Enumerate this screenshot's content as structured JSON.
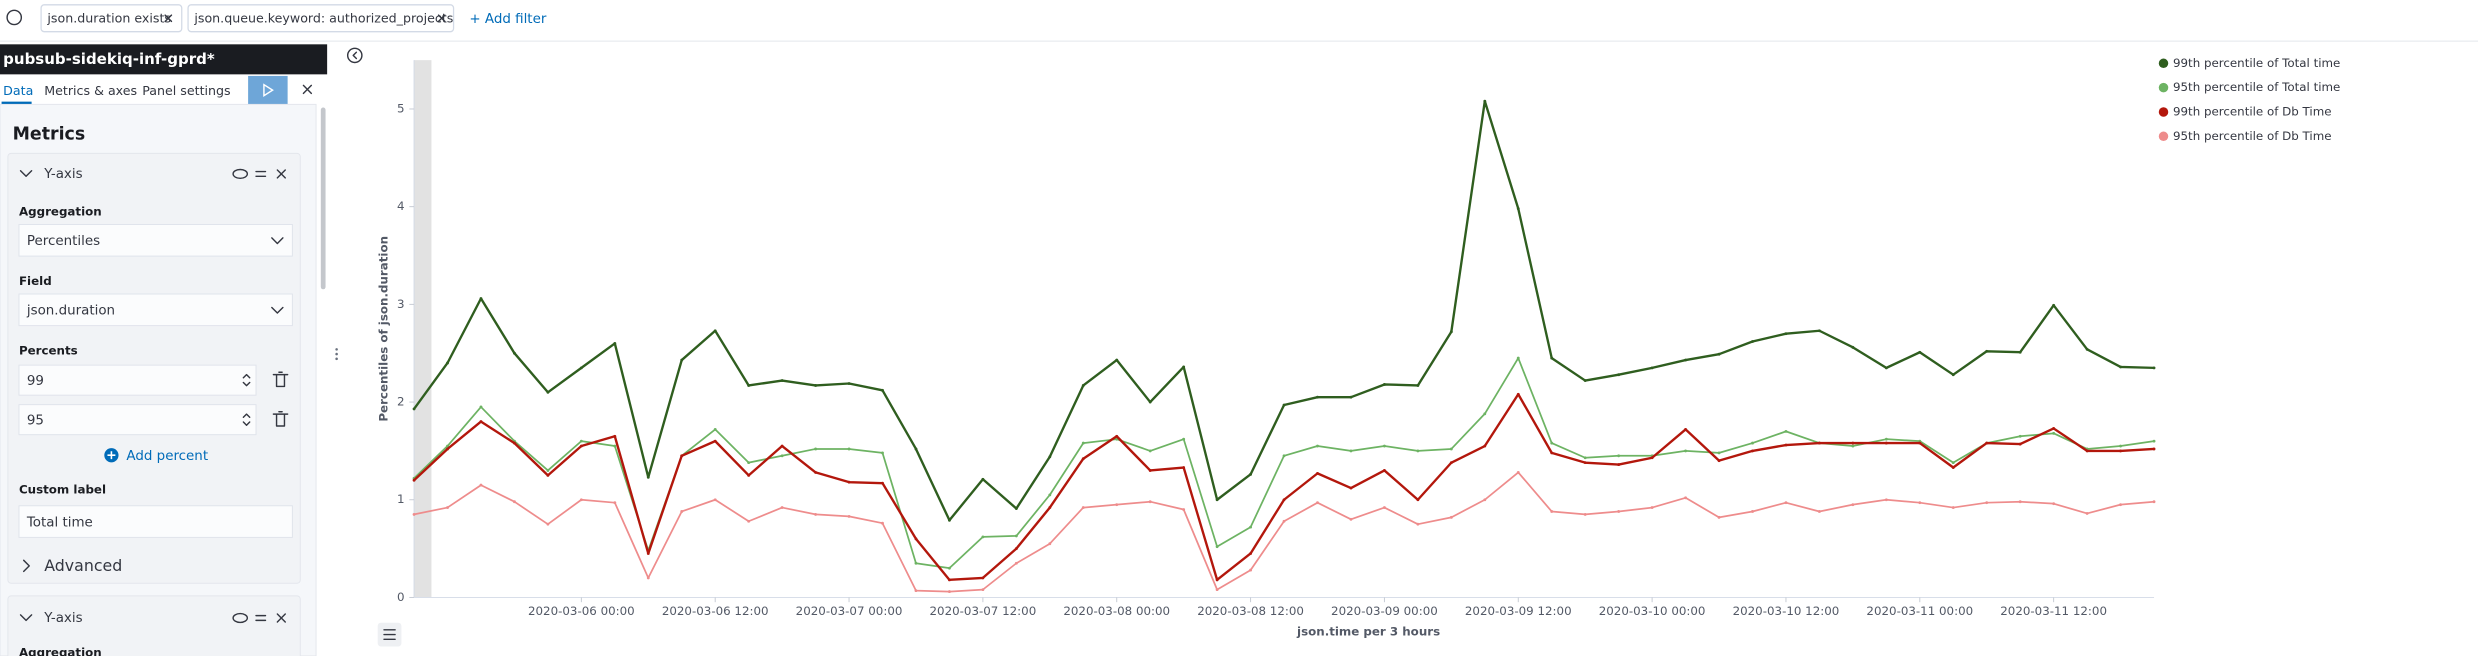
{
  "filter_bar": {
    "filters": [
      "json.duration exists",
      "json.queue.keyword: authorized_projects"
    ],
    "add_filter": "+ Add filter"
  },
  "sidebar": {
    "index_pattern": "pubsub-sidekiq-inf-gprd*",
    "tabs": [
      "Data",
      "Metrics & axes",
      "Panel settings"
    ],
    "section_title": "Metrics",
    "metrics": [
      {
        "title": "Y-axis",
        "aggregation_label": "Aggregation",
        "aggregation": "Percentiles",
        "field_label": "Field",
        "field": "json.duration",
        "percents_label": "Percents",
        "percents": [
          99,
          95
        ],
        "add_percent": "Add percent",
        "custom_label_label": "Custom label",
        "custom_label": "Total time",
        "advanced": "Advanced"
      },
      {
        "title": "Y-axis",
        "aggregation_label": "Aggregation"
      }
    ]
  },
  "chart_data": {
    "type": "line",
    "ylabel": "Percentiles of json.duration",
    "xlabel": "json.time per 3 hours",
    "legend": "top-right",
    "x": [
      "2020-03-05 09:00",
      "2020-03-05 12:00",
      "2020-03-05 15:00",
      "2020-03-05 18:00",
      "2020-03-05 21:00",
      "2020-03-06 00:00",
      "2020-03-06 03:00",
      "2020-03-06 06:00",
      "2020-03-06 09:00",
      "2020-03-06 12:00",
      "2020-03-06 15:00",
      "2020-03-06 18:00",
      "2020-03-06 21:00",
      "2020-03-07 00:00",
      "2020-03-07 03:00",
      "2020-03-07 06:00",
      "2020-03-07 09:00",
      "2020-03-07 12:00",
      "2020-03-07 15:00",
      "2020-03-07 18:00",
      "2020-03-07 21:00",
      "2020-03-08 00:00",
      "2020-03-08 03:00",
      "2020-03-08 06:00",
      "2020-03-08 09:00",
      "2020-03-08 12:00",
      "2020-03-08 15:00",
      "2020-03-08 18:00",
      "2020-03-08 21:00",
      "2020-03-09 00:00",
      "2020-03-09 03:00",
      "2020-03-09 06:00",
      "2020-03-09 09:00",
      "2020-03-09 12:00",
      "2020-03-09 15:00",
      "2020-03-09 18:00",
      "2020-03-09 21:00",
      "2020-03-10 00:00",
      "2020-03-10 03:00",
      "2020-03-10 06:00",
      "2020-03-10 09:00",
      "2020-03-10 12:00",
      "2020-03-10 15:00",
      "2020-03-10 18:00",
      "2020-03-10 21:00",
      "2020-03-11 00:00",
      "2020-03-11 03:00",
      "2020-03-11 06:00",
      "2020-03-11 09:00",
      "2020-03-11 12:00",
      "2020-03-11 15:00",
      "2020-03-11 18:00",
      "2020-03-11 21:00"
    ],
    "xticks": [
      "2020-03-06 00:00",
      "2020-03-06 12:00",
      "2020-03-07 00:00",
      "2020-03-07 12:00",
      "2020-03-08 00:00",
      "2020-03-08 12:00",
      "2020-03-09 00:00",
      "2020-03-09 12:00",
      "2020-03-10 00:00",
      "2020-03-10 12:00",
      "2020-03-11 00:00",
      "2020-03-11 12:00"
    ],
    "ylim": [
      0,
      5.5
    ],
    "yticks": [
      0,
      1,
      2,
      3,
      4,
      5
    ],
    "series": [
      {
        "name": "99th percentile of Total time",
        "color": "#2f5e1f",
        "values": [
          1.93,
          2.4,
          3.06,
          2.5,
          2.1,
          2.35,
          2.6,
          1.23,
          2.43,
          2.73,
          2.17,
          2.22,
          2.17,
          2.19,
          2.12,
          1.52,
          0.79,
          1.21,
          0.91,
          1.44,
          2.17,
          2.43,
          2.0,
          2.36,
          1.0,
          1.26,
          1.97,
          2.05,
          2.05,
          2.18,
          2.17,
          2.72,
          5.08,
          3.98,
          2.45,
          2.22,
          2.28,
          2.35,
          2.43,
          2.49,
          2.62,
          2.7,
          2.73,
          2.56,
          2.35,
          2.51,
          2.28,
          2.52,
          2.51,
          2.99,
          2.54,
          2.36,
          2.35
        ]
      },
      {
        "name": "95th percentile of Total time",
        "color": "#6db363",
        "values": [
          1.22,
          1.55,
          1.95,
          1.6,
          1.3,
          1.6,
          1.55,
          0.48,
          1.45,
          1.72,
          1.38,
          1.45,
          1.52,
          1.52,
          1.48,
          0.35,
          0.3,
          0.62,
          0.63,
          1.05,
          1.58,
          1.62,
          1.5,
          1.62,
          0.52,
          0.72,
          1.45,
          1.55,
          1.5,
          1.55,
          1.5,
          1.52,
          1.88,
          2.45,
          1.58,
          1.43,
          1.45,
          1.45,
          1.5,
          1.48,
          1.58,
          1.7,
          1.58,
          1.55,
          1.62,
          1.6,
          1.38,
          1.58,
          1.65,
          1.68,
          1.52,
          1.55,
          1.6
        ]
      },
      {
        "name": "99th percentile of Db Time",
        "color": "#b3170c",
        "values": [
          1.2,
          1.52,
          1.8,
          1.58,
          1.25,
          1.55,
          1.65,
          0.45,
          1.45,
          1.6,
          1.25,
          1.55,
          1.28,
          1.18,
          1.17,
          0.6,
          0.18,
          0.2,
          0.5,
          0.92,
          1.42,
          1.65,
          1.3,
          1.33,
          0.18,
          0.45,
          1.0,
          1.27,
          1.12,
          1.3,
          1.0,
          1.38,
          1.55,
          2.08,
          1.48,
          1.38,
          1.36,
          1.43,
          1.72,
          1.4,
          1.5,
          1.56,
          1.58,
          1.58,
          1.58,
          1.58,
          1.33,
          1.58,
          1.57,
          1.73,
          1.5,
          1.5,
          1.52
        ]
      },
      {
        "name": "95th percentile of Db Time",
        "color": "#ee8c8c",
        "values": [
          0.85,
          0.92,
          1.15,
          0.98,
          0.75,
          1.0,
          0.97,
          0.2,
          0.88,
          1.0,
          0.78,
          0.92,
          0.85,
          0.83,
          0.76,
          0.07,
          0.06,
          0.08,
          0.35,
          0.55,
          0.92,
          0.95,
          0.98,
          0.9,
          0.08,
          0.28,
          0.78,
          0.97,
          0.8,
          0.92,
          0.75,
          0.82,
          1.0,
          1.28,
          0.88,
          0.85,
          0.88,
          0.92,
          1.02,
          0.82,
          0.88,
          0.97,
          0.88,
          0.95,
          1.0,
          0.97,
          0.92,
          0.97,
          0.98,
          0.96,
          0.86,
          0.95,
          0.98
        ]
      }
    ]
  }
}
